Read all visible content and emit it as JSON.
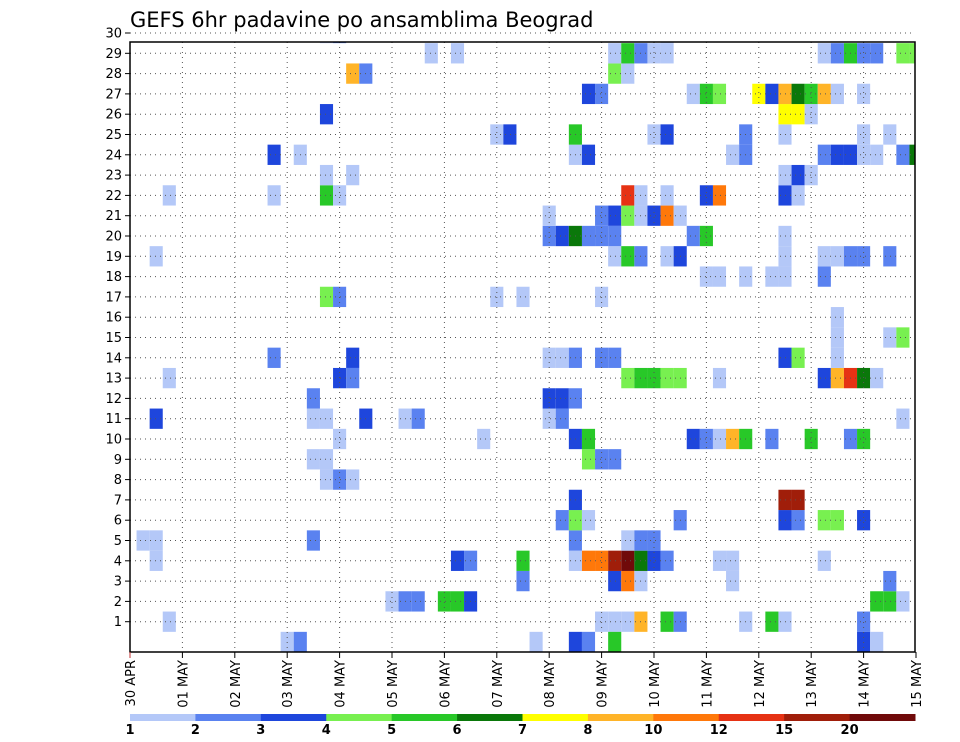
{
  "chart_data": {
    "type": "heatmap",
    "title": "GEFS 6hr padavine po ansamblima Beograd",
    "xlabel": "",
    "ylabel": "",
    "x_range": [
      0,
      60
    ],
    "y_range": [
      0,
      30
    ],
    "grid": true,
    "x_ticks": [
      {
        "label": "30 APR",
        "x": 0
      },
      {
        "label": "01 MAY",
        "x": 4
      },
      {
        "label": "02 MAY",
        "x": 8
      },
      {
        "label": "03 MAY",
        "x": 12
      },
      {
        "label": "04 MAY",
        "x": 16
      },
      {
        "label": "05 MAY",
        "x": 20
      },
      {
        "label": "06 MAY",
        "x": 24
      },
      {
        "label": "07 MAY",
        "x": 28
      },
      {
        "label": "08 MAY",
        "x": 32
      },
      {
        "label": "09 MAY",
        "x": 36
      },
      {
        "label": "10 MAY",
        "x": 40
      },
      {
        "label": "11 MAY",
        "x": 44
      },
      {
        "label": "12 MAY",
        "x": 48
      },
      {
        "label": "13 MAY",
        "x": 52
      },
      {
        "label": "14 MAY",
        "x": 56
      },
      {
        "label": "15 MAY",
        "x": 60
      }
    ],
    "y_ticks": [
      "1",
      "2",
      "3",
      "4",
      "5",
      "6",
      "7",
      "8",
      "9",
      "10",
      "11",
      "12",
      "13",
      "14",
      "15",
      "16",
      "17",
      "18",
      "19",
      "20",
      "21",
      "22",
      "23",
      "24",
      "25",
      "26",
      "27",
      "28",
      "29",
      "30"
    ],
    "colorbar": {
      "labels": [
        "1",
        "2",
        "3",
        "4",
        "5",
        "6",
        "7",
        "8",
        "10",
        "12",
        "15",
        "20"
      ],
      "colors": [
        "#b4c8f8",
        "#5a82f0",
        "#1e46dc",
        "#78f050",
        "#28c828",
        "#0a780a",
        "#ffff00",
        "#ffb428",
        "#ff780a",
        "#e63214",
        "#a01e0a",
        "#700a0a"
      ]
    },
    "cells": [
      [
        3,
        1,
        1
      ],
      [
        36,
        1,
        1
      ],
      [
        37,
        1,
        1
      ],
      [
        38,
        1,
        1
      ],
      [
        39,
        1,
        8
      ],
      [
        41,
        1,
        5
      ],
      [
        42,
        1,
        2
      ],
      [
        47,
        1,
        1
      ],
      [
        49,
        1,
        5
      ],
      [
        50,
        1,
        1
      ],
      [
        56,
        1,
        2
      ],
      [
        20,
        2,
        1
      ],
      [
        21,
        2,
        2
      ],
      [
        22,
        2,
        2
      ],
      [
        24,
        2,
        5
      ],
      [
        25,
        2,
        5
      ],
      [
        26,
        2,
        3
      ],
      [
        57,
        2,
        5
      ],
      [
        58,
        2,
        5
      ],
      [
        59,
        2,
        1
      ],
      [
        30,
        3,
        2
      ],
      [
        37,
        3,
        3
      ],
      [
        38,
        3,
        9
      ],
      [
        39,
        3,
        1
      ],
      [
        46,
        3,
        1
      ],
      [
        58,
        3,
        2
      ],
      [
        2,
        4,
        1
      ],
      [
        25,
        4,
        3
      ],
      [
        26,
        4,
        2
      ],
      [
        30,
        4,
        5
      ],
      [
        34,
        4,
        1
      ],
      [
        35,
        4,
        9
      ],
      [
        36,
        4,
        9
      ],
      [
        37,
        4,
        11
      ],
      [
        38,
        4,
        12
      ],
      [
        39,
        4,
        6
      ],
      [
        40,
        4,
        3
      ],
      [
        41,
        4,
        2
      ],
      [
        45,
        4,
        1
      ],
      [
        46,
        4,
        1
      ],
      [
        53,
        4,
        1
      ],
      [
        1,
        5,
        1
      ],
      [
        2,
        5,
        1
      ],
      [
        14,
        5,
        2
      ],
      [
        34,
        5,
        2
      ],
      [
        38,
        5,
        1
      ],
      [
        39,
        5,
        2
      ],
      [
        40,
        5,
        2
      ],
      [
        33,
        6,
        2
      ],
      [
        34,
        6,
        4
      ],
      [
        35,
        6,
        1
      ],
      [
        42,
        6,
        2
      ],
      [
        50,
        6,
        3
      ],
      [
        51,
        6,
        2
      ],
      [
        53,
        6,
        4
      ],
      [
        54,
        6,
        4
      ],
      [
        56,
        6,
        3
      ],
      [
        34,
        7,
        3
      ],
      [
        50,
        7,
        11
      ],
      [
        51,
        7,
        11
      ],
      [
        15,
        8,
        1
      ],
      [
        16,
        8,
        2
      ],
      [
        17,
        8,
        1
      ],
      [
        14,
        9,
        1
      ],
      [
        15,
        9,
        1
      ],
      [
        35,
        9,
        4
      ],
      [
        36,
        9,
        2
      ],
      [
        37,
        9,
        2
      ],
      [
        16,
        10,
        1
      ],
      [
        27,
        10,
        1
      ],
      [
        34,
        10,
        3
      ],
      [
        35,
        10,
        5
      ],
      [
        43,
        10,
        3
      ],
      [
        44,
        10,
        2
      ],
      [
        45,
        10,
        1
      ],
      [
        46,
        10,
        8
      ],
      [
        47,
        10,
        5
      ],
      [
        49,
        10,
        2
      ],
      [
        52,
        10,
        5
      ],
      [
        55,
        10,
        2
      ],
      [
        56,
        10,
        5
      ],
      [
        2,
        11,
        3
      ],
      [
        14,
        11,
        1
      ],
      [
        15,
        11,
        1
      ],
      [
        18,
        11,
        3
      ],
      [
        21,
        11,
        1
      ],
      [
        22,
        11,
        2
      ],
      [
        32,
        11,
        1
      ],
      [
        33,
        11,
        2
      ],
      [
        59,
        11,
        1
      ],
      [
        14,
        12,
        2
      ],
      [
        32,
        12,
        3
      ],
      [
        33,
        12,
        3
      ],
      [
        34,
        12,
        2
      ],
      [
        3,
        13,
        1
      ],
      [
        16,
        13,
        3
      ],
      [
        17,
        13,
        2
      ],
      [
        38,
        13,
        4
      ],
      [
        39,
        13,
        5
      ],
      [
        40,
        13,
        5
      ],
      [
        41,
        13,
        4
      ],
      [
        42,
        13,
        4
      ],
      [
        45,
        13,
        1
      ],
      [
        53,
        13,
        3
      ],
      [
        54,
        13,
        8
      ],
      [
        55,
        13,
        10
      ],
      [
        56,
        13,
        6
      ],
      [
        57,
        13,
        1
      ],
      [
        11,
        14,
        2
      ],
      [
        17,
        14,
        3
      ],
      [
        32,
        14,
        1
      ],
      [
        33,
        14,
        1
      ],
      [
        34,
        14,
        2
      ],
      [
        36,
        14,
        2
      ],
      [
        37,
        14,
        2
      ],
      [
        50,
        14,
        3
      ],
      [
        51,
        14,
        4
      ],
      [
        54,
        14,
        1
      ],
      [
        54,
        15,
        1
      ],
      [
        58,
        15,
        1
      ],
      [
        59,
        15,
        4
      ],
      [
        54,
        16,
        1
      ],
      [
        15,
        17,
        4
      ],
      [
        16,
        17,
        2
      ],
      [
        28,
        17,
        1
      ],
      [
        30,
        17,
        1
      ],
      [
        36,
        17,
        1
      ],
      [
        44,
        18,
        1
      ],
      [
        45,
        18,
        1
      ],
      [
        47,
        18,
        1
      ],
      [
        49,
        18,
        1
      ],
      [
        50,
        18,
        1
      ],
      [
        53,
        18,
        2
      ],
      [
        2,
        19,
        1
      ],
      [
        37,
        19,
        1
      ],
      [
        38,
        19,
        5
      ],
      [
        39,
        19,
        2
      ],
      [
        41,
        19,
        1
      ],
      [
        42,
        19,
        3
      ],
      [
        50,
        19,
        1
      ],
      [
        53,
        19,
        1
      ],
      [
        54,
        19,
        1
      ],
      [
        55,
        19,
        2
      ],
      [
        56,
        19,
        2
      ],
      [
        58,
        19,
        2
      ],
      [
        32,
        20,
        2
      ],
      [
        33,
        20,
        3
      ],
      [
        34,
        20,
        6
      ],
      [
        35,
        20,
        2
      ],
      [
        36,
        20,
        2
      ],
      [
        37,
        20,
        2
      ],
      [
        43,
        20,
        2
      ],
      [
        44,
        20,
        5
      ],
      [
        50,
        20,
        1
      ],
      [
        32,
        21,
        1
      ],
      [
        36,
        21,
        2
      ],
      [
        37,
        21,
        3
      ],
      [
        38,
        21,
        4
      ],
      [
        39,
        21,
        1
      ],
      [
        40,
        21,
        3
      ],
      [
        41,
        21,
        9
      ],
      [
        42,
        21,
        1
      ],
      [
        3,
        22,
        1
      ],
      [
        11,
        22,
        1
      ],
      [
        15,
        22,
        5
      ],
      [
        16,
        22,
        1
      ],
      [
        38,
        22,
        10
      ],
      [
        39,
        22,
        1
      ],
      [
        41,
        22,
        1
      ],
      [
        44,
        22,
        3
      ],
      [
        45,
        22,
        9
      ],
      [
        50,
        22,
        3
      ],
      [
        51,
        22,
        1
      ],
      [
        15,
        23,
        1
      ],
      [
        17,
        23,
        1
      ],
      [
        50,
        23,
        1
      ],
      [
        51,
        23,
        3
      ],
      [
        52,
        23,
        1
      ],
      [
        11,
        24,
        3
      ],
      [
        13,
        24,
        1
      ],
      [
        34,
        24,
        1
      ],
      [
        35,
        24,
        3
      ],
      [
        46,
        24,
        1
      ],
      [
        47,
        24,
        2
      ],
      [
        53,
        24,
        2
      ],
      [
        54,
        24,
        3
      ],
      [
        55,
        24,
        3
      ],
      [
        56,
        24,
        1
      ],
      [
        57,
        24,
        1
      ],
      [
        59,
        24,
        2
      ],
      [
        60,
        24,
        6
      ],
      [
        28,
        25,
        1
      ],
      [
        29,
        25,
        3
      ],
      [
        34,
        25,
        5
      ],
      [
        40,
        25,
        1
      ],
      [
        41,
        25,
        3
      ],
      [
        47,
        25,
        2
      ],
      [
        50,
        25,
        1
      ],
      [
        56,
        25,
        1
      ],
      [
        58,
        25,
        1
      ],
      [
        15,
        26,
        3
      ],
      [
        50,
        26,
        7
      ],
      [
        51,
        26,
        7
      ],
      [
        52,
        26,
        1
      ],
      [
        35,
        27,
        3
      ],
      [
        36,
        27,
        2
      ],
      [
        43,
        27,
        1
      ],
      [
        44,
        27,
        5
      ],
      [
        45,
        27,
        4
      ],
      [
        48,
        27,
        7
      ],
      [
        49,
        27,
        3
      ],
      [
        50,
        27,
        8
      ],
      [
        51,
        27,
        6
      ],
      [
        52,
        27,
        5
      ],
      [
        53,
        27,
        8
      ],
      [
        54,
        27,
        1
      ],
      [
        56,
        27,
        1
      ],
      [
        17,
        28,
        8
      ],
      [
        18,
        28,
        2
      ],
      [
        37,
        28,
        4
      ],
      [
        38,
        28,
        1
      ],
      [
        23,
        29,
        1
      ],
      [
        25,
        29,
        1
      ],
      [
        37,
        29,
        1
      ],
      [
        38,
        29,
        5
      ],
      [
        39,
        29,
        2
      ],
      [
        40,
        29,
        1
      ],
      [
        41,
        29,
        1
      ],
      [
        53,
        29,
        1
      ],
      [
        54,
        29,
        2
      ],
      [
        55,
        29,
        5
      ],
      [
        56,
        29,
        2
      ],
      [
        57,
        29,
        2
      ],
      [
        59,
        29,
        4
      ],
      [
        60,
        29,
        4
      ],
      [
        15,
        30,
        1
      ],
      [
        16,
        30,
        2
      ],
      [
        41,
        30,
        1
      ],
      [
        12,
        0,
        1
      ],
      [
        13,
        0,
        2
      ],
      [
        31,
        0,
        1
      ],
      [
        34,
        0,
        3
      ],
      [
        35,
        0,
        2
      ],
      [
        37,
        0,
        5
      ],
      [
        56,
        0,
        3
      ],
      [
        57,
        0,
        1
      ]
    ]
  }
}
